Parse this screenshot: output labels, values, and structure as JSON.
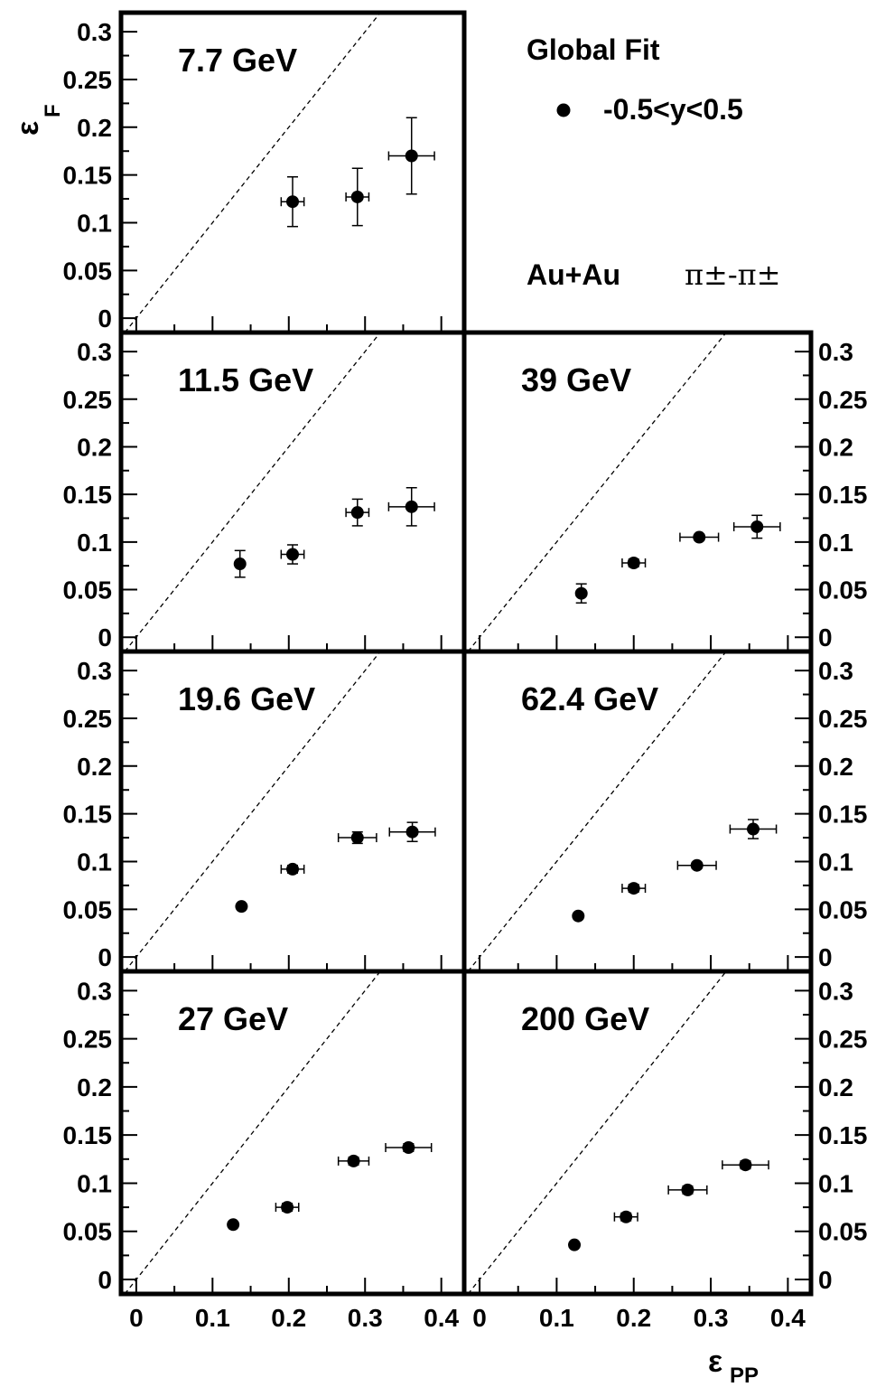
{
  "chart_data": {
    "type": "scatter",
    "xlabel": "ε",
    "xlabel_sub": "PP",
    "ylabel": "ε",
    "ylabel_sub": "F",
    "xlim": [
      -0.02,
      0.43
    ],
    "ylim": [
      -0.015,
      0.32
    ],
    "x_ticks": [
      "0",
      "0.1",
      "0.2",
      "0.3",
      "0.4"
    ],
    "y_ticks": [
      "0",
      "0.05",
      "0.1",
      "0.15",
      "0.2",
      "0.25",
      "0.3"
    ],
    "reference_line": "y = x (dashed)",
    "legend": {
      "title": "Global Fit",
      "entries": [
        {
          "label": "-0.5<y<0.5",
          "marker": "filled-circle",
          "color": "#000000"
        }
      ],
      "system": "Au+Au",
      "pair": "π±-π±"
    },
    "panels": [
      {
        "energy": "7.7 GeV",
        "points": [
          {
            "x": 0.205,
            "y": 0.122,
            "xerr": 0.015,
            "yerr": 0.026
          },
          {
            "x": 0.29,
            "y": 0.127,
            "xerr": 0.015,
            "yerr": 0.03
          },
          {
            "x": 0.361,
            "y": 0.17,
            "xerr": 0.03,
            "yerr": 0.04
          }
        ]
      },
      {
        "energy": "11.5 GeV",
        "points": [
          {
            "x": 0.136,
            "y": 0.077,
            "xerr": 0.0,
            "yerr": 0.014
          },
          {
            "x": 0.205,
            "y": 0.087,
            "xerr": 0.015,
            "yerr": 0.01
          },
          {
            "x": 0.29,
            "y": 0.131,
            "xerr": 0.015,
            "yerr": 0.014
          },
          {
            "x": 0.361,
            "y": 0.137,
            "xerr": 0.03,
            "yerr": 0.02
          }
        ]
      },
      {
        "energy": "39 GeV",
        "points": [
          {
            "x": 0.132,
            "y": 0.046,
            "xerr": 0.0,
            "yerr": 0.01
          },
          {
            "x": 0.2,
            "y": 0.078,
            "xerr": 0.015,
            "yerr": 0.004
          },
          {
            "x": 0.285,
            "y": 0.105,
            "xerr": 0.025,
            "yerr": 0.003
          },
          {
            "x": 0.36,
            "y": 0.116,
            "xerr": 0.03,
            "yerr": 0.012
          }
        ]
      },
      {
        "energy": "19.6 GeV",
        "points": [
          {
            "x": 0.138,
            "y": 0.053,
            "xerr": 0.0,
            "yerr": 0.0
          },
          {
            "x": 0.205,
            "y": 0.092,
            "xerr": 0.015,
            "yerr": 0.004
          },
          {
            "x": 0.29,
            "y": 0.125,
            "xerr": 0.025,
            "yerr": 0.006
          },
          {
            "x": 0.362,
            "y": 0.131,
            "xerr": 0.03,
            "yerr": 0.01
          }
        ]
      },
      {
        "energy": "62.4 GeV",
        "points": [
          {
            "x": 0.128,
            "y": 0.043,
            "xerr": 0.0,
            "yerr": 0.0
          },
          {
            "x": 0.2,
            "y": 0.072,
            "xerr": 0.015,
            "yerr": 0.004
          },
          {
            "x": 0.282,
            "y": 0.096,
            "xerr": 0.025,
            "yerr": 0.003
          },
          {
            "x": 0.355,
            "y": 0.134,
            "xerr": 0.03,
            "yerr": 0.01
          }
        ]
      },
      {
        "energy": "27 GeV",
        "points": [
          {
            "x": 0.127,
            "y": 0.057,
            "xerr": 0.0,
            "yerr": 0.0
          },
          {
            "x": 0.198,
            "y": 0.075,
            "xerr": 0.015,
            "yerr": 0.004
          },
          {
            "x": 0.285,
            "y": 0.123,
            "xerr": 0.02,
            "yerr": 0.004
          },
          {
            "x": 0.357,
            "y": 0.137,
            "xerr": 0.03,
            "yerr": 0.004
          }
        ]
      },
      {
        "energy": "200 GeV",
        "points": [
          {
            "x": 0.123,
            "y": 0.036,
            "xerr": 0.0,
            "yerr": 0.0
          },
          {
            "x": 0.19,
            "y": 0.065,
            "xerr": 0.015,
            "yerr": 0.004
          },
          {
            "x": 0.27,
            "y": 0.093,
            "xerr": 0.025,
            "yerr": 0.004
          },
          {
            "x": 0.345,
            "y": 0.119,
            "xerr": 0.03,
            "yerr": 0.004
          }
        ]
      }
    ]
  }
}
